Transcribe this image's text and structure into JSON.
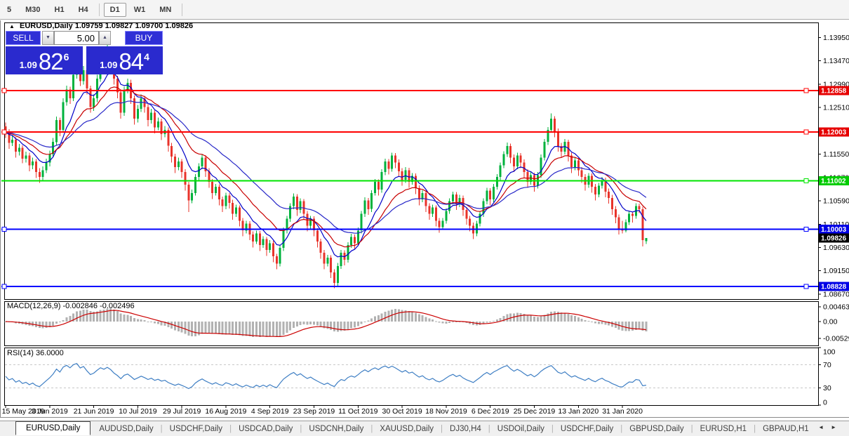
{
  "toolbar": {
    "timeframes": [
      "5",
      "M30",
      "H1",
      "H4",
      "D1",
      "W1",
      "MN"
    ],
    "active": "D1"
  },
  "chart": {
    "header": {
      "collapse_icon": "▲",
      "symbol_label": "EURUSD,Daily",
      "ohlc": "1.09759 1.09827 1.09700 1.09826"
    },
    "trade_panel": {
      "sell_label": "SELL",
      "buy_label": "BUY",
      "volume": "5.00",
      "spin_down_icon": "▼",
      "spin_up_icon": "▲",
      "sell_price": {
        "prefix": "1.09",
        "big": "82",
        "sup": "6"
      },
      "buy_price": {
        "prefix": "1.09",
        "big": "84",
        "sup": "4"
      }
    },
    "macd_label": "MACD(12,26,9) -0.002846 -0.002496",
    "rsi_label": "RSI(14) 36.0000"
  },
  "chart_data": {
    "type": "candlestick",
    "symbol": "EURUSD",
    "timeframe": "Daily",
    "title": "EURUSD,Daily",
    "x_labels": [
      "15 May 2019",
      "3 Jun 2019",
      "21 Jun 2019",
      "10 Jul 2019",
      "29 Jul 2019",
      "16 Aug 2019",
      "4 Sep 2019",
      "23 Sep 2019",
      "11 Oct 2019",
      "30 Oct 2019",
      "18 Nov 2019",
      "6 Dec 2019",
      "25 Dec 2019",
      "13 Jan 2020",
      "31 Jan 2020"
    ],
    "x_label_indices": [
      0,
      13,
      26,
      39,
      52,
      65,
      78,
      91,
      104,
      117,
      130,
      143,
      156,
      169,
      182
    ],
    "price_ticks": [
      "1.13950",
      "1.13470",
      "1.12990",
      "1.12510",
      "1.12030",
      "1.11550",
      "1.11070",
      "1.10590",
      "1.10110",
      "1.09630",
      "1.09150",
      "1.08670"
    ],
    "hlines": [
      {
        "price": 1.12858,
        "label": "1.12858",
        "color": "#FF0000",
        "label_bg": "#E60000",
        "left_square": true
      },
      {
        "price": 1.12003,
        "label": "1.12003",
        "color": "#FF0000",
        "label_bg": "#E60000",
        "left_square": true
      },
      {
        "price": 1.11002,
        "label": "1.11002",
        "color": "#00E400",
        "label_bg": "#00CC00",
        "left_square": false
      },
      {
        "price": 1.10003,
        "label": "1.10003",
        "color": "#0000FF",
        "label_bg": "#0000E6",
        "left_square": true
      },
      {
        "price": 1.08828,
        "label": "1.08828",
        "color": "#0000FF",
        "label_bg": "#0000E6",
        "left_square": true
      }
    ],
    "current_price": {
      "value": 1.09826,
      "label": "1.09826",
      "label_bg": "#000000"
    },
    "moving_averages": [
      {
        "type": "EMA",
        "period": 9,
        "color": "#0000C8"
      },
      {
        "type": "EMA",
        "period": 18,
        "color": "#C80000"
      },
      {
        "type": "EMA",
        "period": 34,
        "color": "#2828C8"
      }
    ],
    "indicators": [
      {
        "name": "MACD",
        "params": "12,26,9",
        "values": [
          "-0.002846",
          "-0.002496"
        ],
        "ticks": [
          {
            "v": 0.00463,
            "label": "0.00463"
          },
          {
            "v": 0,
            "label": "0.00"
          },
          {
            "v": -0.005299,
            "label": "-0.005299"
          }
        ],
        "histogram_color": "#B2B2B2",
        "signal_color": "#CC0000"
      },
      {
        "name": "RSI",
        "params": "14",
        "value": "36.0000",
        "ticks": [
          {
            "v": 100,
            "label": "100"
          },
          {
            "v": 70,
            "label": "70"
          },
          {
            "v": 30,
            "label": "30"
          },
          {
            "v": 0,
            "label": "0"
          }
        ],
        "levels": [
          70,
          30
        ],
        "line_color": "#3F7FC4"
      }
    ],
    "colors": {
      "bull": "#00B23C",
      "bear": "#E8332A"
    },
    "candles": [
      [
        1.1212,
        1.122,
        1.1188,
        1.12
      ],
      [
        1.12,
        1.1206,
        1.1166,
        1.1178
      ],
      [
        1.1178,
        1.1193,
        1.1172,
        1.1185
      ],
      [
        1.1185,
        1.119,
        1.1148,
        1.116
      ],
      [
        1.116,
        1.1176,
        1.1152,
        1.1168
      ],
      [
        1.1168,
        1.1173,
        1.1136,
        1.1146
      ],
      [
        1.1146,
        1.116,
        1.1138,
        1.1152
      ],
      [
        1.1152,
        1.1158,
        1.112,
        1.1132
      ],
      [
        1.1132,
        1.1148,
        1.1124,
        1.114
      ],
      [
        1.114,
        1.1145,
        1.1106,
        1.1118
      ],
      [
        1.1118,
        1.1126,
        1.1096,
        1.1108
      ],
      [
        1.1108,
        1.113,
        1.1102,
        1.1122
      ],
      [
        1.1122,
        1.1146,
        1.1116,
        1.1138
      ],
      [
        1.1138,
        1.1162,
        1.113,
        1.1155
      ],
      [
        1.1155,
        1.1188,
        1.115,
        1.118
      ],
      [
        1.118,
        1.1232,
        1.1174,
        1.1225
      ],
      [
        1.1225,
        1.123,
        1.1192,
        1.1205
      ],
      [
        1.1205,
        1.127,
        1.12,
        1.1262
      ],
      [
        1.1262,
        1.1296,
        1.1255,
        1.1288
      ],
      [
        1.1288,
        1.1294,
        1.1258,
        1.127
      ],
      [
        1.127,
        1.1326,
        1.1264,
        1.1318
      ],
      [
        1.1318,
        1.1348,
        1.131,
        1.134
      ],
      [
        1.134,
        1.1346,
        1.1295,
        1.1305
      ],
      [
        1.1305,
        1.1336,
        1.1298,
        1.1328
      ],
      [
        1.1328,
        1.1333,
        1.1278,
        1.129
      ],
      [
        1.129,
        1.1296,
        1.124,
        1.1252
      ],
      [
        1.1252,
        1.1278,
        1.1244,
        1.127
      ],
      [
        1.127,
        1.1318,
        1.1262,
        1.131
      ],
      [
        1.131,
        1.136,
        1.1304,
        1.1352
      ],
      [
        1.1352,
        1.1358,
        1.1326,
        1.1338
      ],
      [
        1.1338,
        1.139,
        1.1332,
        1.137
      ],
      [
        1.137,
        1.1376,
        1.1336,
        1.1348
      ],
      [
        1.1348,
        1.1354,
        1.1298,
        1.131
      ],
      [
        1.131,
        1.1316,
        1.127,
        1.1282
      ],
      [
        1.1282,
        1.1288,
        1.1228,
        1.124
      ],
      [
        1.124,
        1.1294,
        1.1234,
        1.1286
      ],
      [
        1.1286,
        1.131,
        1.128,
        1.1302
      ],
      [
        1.1302,
        1.1308,
        1.1258,
        1.127
      ],
      [
        1.127,
        1.1276,
        1.1216,
        1.1228
      ],
      [
        1.1228,
        1.1256,
        1.122,
        1.1248
      ],
      [
        1.1248,
        1.1278,
        1.1242,
        1.127
      ],
      [
        1.127,
        1.1275,
        1.124,
        1.1252
      ],
      [
        1.1252,
        1.1258,
        1.1212,
        1.1225
      ],
      [
        1.1225,
        1.1248,
        1.1218,
        1.124
      ],
      [
        1.124,
        1.1245,
        1.1198,
        1.121
      ],
      [
        1.121,
        1.123,
        1.1204,
        1.1222
      ],
      [
        1.1222,
        1.1228,
        1.1184,
        1.1196
      ],
      [
        1.1196,
        1.1213,
        1.119,
        1.1205
      ],
      [
        1.1205,
        1.121,
        1.116,
        1.1172
      ],
      [
        1.1172,
        1.1178,
        1.1138,
        1.115
      ],
      [
        1.115,
        1.1156,
        1.1116,
        1.1128
      ],
      [
        1.1128,
        1.1148,
        1.1122,
        1.114
      ],
      [
        1.114,
        1.1145,
        1.1106,
        1.1118
      ],
      [
        1.1118,
        1.1124,
        1.108,
        1.1092
      ],
      [
        1.1092,
        1.1098,
        1.1036,
        1.106
      ],
      [
        1.106,
        1.1082,
        1.1054,
        1.1075
      ],
      [
        1.1075,
        1.1114,
        1.107,
        1.1108
      ],
      [
        1.1108,
        1.1136,
        1.1102,
        1.113
      ],
      [
        1.113,
        1.1154,
        1.1124,
        1.1148
      ],
      [
        1.1148,
        1.1153,
        1.1108,
        1.112
      ],
      [
        1.112,
        1.1126,
        1.1086,
        1.1098
      ],
      [
        1.1098,
        1.1104,
        1.1063,
        1.1075
      ],
      [
        1.1075,
        1.1094,
        1.107,
        1.1088
      ],
      [
        1.1088,
        1.1093,
        1.105,
        1.1062
      ],
      [
        1.1062,
        1.1068,
        1.1036,
        1.1048
      ],
      [
        1.1048,
        1.1076,
        1.1042,
        1.107
      ],
      [
        1.107,
        1.1075,
        1.1043,
        1.1055
      ],
      [
        1.1055,
        1.1061,
        1.102,
        1.1032
      ],
      [
        1.1032,
        1.1051,
        1.1026,
        1.1045
      ],
      [
        1.1045,
        1.105,
        1.1006,
        1.1018
      ],
      [
        1.1018,
        1.1024,
        1.0986,
        1.0998
      ],
      [
        1.0998,
        1.1018,
        1.0992,
        1.1012
      ],
      [
        1.1012,
        1.1017,
        1.0978,
        1.099
      ],
      [
        1.099,
        1.0996,
        1.0963,
        1.0975
      ],
      [
        1.0975,
        1.0998,
        1.097,
        1.0992
      ],
      [
        1.0992,
        1.0997,
        1.0956,
        1.0968
      ],
      [
        1.0968,
        1.0986,
        1.0962,
        1.098
      ],
      [
        1.098,
        1.0985,
        1.0946,
        1.0958
      ],
      [
        1.0958,
        1.0978,
        1.0952,
        1.0972
      ],
      [
        1.0972,
        1.0977,
        1.0933,
        1.0945
      ],
      [
        1.0945,
        1.095,
        1.0918,
        1.093
      ],
      [
        1.093,
        1.0968,
        1.0924,
        1.0962
      ],
      [
        1.0962,
        1.1004,
        1.0956,
        1.0998
      ],
      [
        1.0998,
        1.1028,
        1.0992,
        1.1022
      ],
      [
        1.1022,
        1.1054,
        1.1016,
        1.1048
      ],
      [
        1.1048,
        1.1074,
        1.1042,
        1.1068
      ],
      [
        1.1068,
        1.1073,
        1.1028,
        1.104
      ],
      [
        1.104,
        1.1064,
        1.1034,
        1.1058
      ],
      [
        1.1058,
        1.1063,
        1.102,
        1.1032
      ],
      [
        1.1032,
        1.1038,
        1.0996,
        1.1008
      ],
      [
        1.1008,
        1.1028,
        1.1002,
        1.1022
      ],
      [
        1.1022,
        1.1027,
        1.0986,
        1.0998
      ],
      [
        1.0998,
        1.1003,
        1.0963,
        1.0975
      ],
      [
        1.0975,
        1.0981,
        1.094,
        1.0952
      ],
      [
        1.0952,
        1.0958,
        1.0918,
        1.093
      ],
      [
        1.093,
        1.0948,
        1.0924,
        1.0942
      ],
      [
        1.0942,
        1.0947,
        1.09,
        1.0912
      ],
      [
        1.0912,
        1.0918,
        1.0879,
        1.089
      ],
      [
        1.089,
        1.0931,
        1.0884,
        1.0925
      ],
      [
        1.0925,
        1.0958,
        1.0919,
        1.0952
      ],
      [
        1.0952,
        1.0957,
        1.0926,
        1.0938
      ],
      [
        1.0938,
        1.0974,
        1.0932,
        1.0968
      ],
      [
        1.0968,
        1.0991,
        1.0962,
        1.0985
      ],
      [
        1.0985,
        1.099,
        1.096,
        1.0972
      ],
      [
        1.0972,
        1.1004,
        1.0966,
        1.0998
      ],
      [
        1.0998,
        1.1038,
        1.0992,
        1.1032
      ],
      [
        1.1032,
        1.1066,
        1.1026,
        1.106
      ],
      [
        1.106,
        1.1065,
        1.103,
        1.1042
      ],
      [
        1.1042,
        1.1081,
        1.1036,
        1.1075
      ],
      [
        1.1075,
        1.1104,
        1.107,
        1.1098
      ],
      [
        1.1098,
        1.1103,
        1.107,
        1.1082
      ],
      [
        1.1082,
        1.1124,
        1.1076,
        1.1118
      ],
      [
        1.1118,
        1.1146,
        1.1112,
        1.114
      ],
      [
        1.114,
        1.1145,
        1.1113,
        1.1125
      ],
      [
        1.1125,
        1.1158,
        1.1119,
        1.1152
      ],
      [
        1.1152,
        1.1157,
        1.1126,
        1.1138
      ],
      [
        1.1138,
        1.1144,
        1.1108,
        1.112
      ],
      [
        1.112,
        1.1126,
        1.109,
        1.1102
      ],
      [
        1.1102,
        1.1128,
        1.1096,
        1.1122
      ],
      [
        1.1122,
        1.1127,
        1.1086,
        1.1098
      ],
      [
        1.1098,
        1.1116,
        1.1092,
        1.111
      ],
      [
        1.111,
        1.1115,
        1.1073,
        1.1085
      ],
      [
        1.1085,
        1.1091,
        1.105,
        1.1062
      ],
      [
        1.1062,
        1.1081,
        1.1056,
        1.1075
      ],
      [
        1.1075,
        1.108,
        1.1036,
        1.1048
      ],
      [
        1.1048,
        1.1054,
        1.102,
        1.1032
      ],
      [
        1.1032,
        1.1051,
        1.1026,
        1.1045
      ],
      [
        1.1045,
        1.105,
        1.1006,
        1.1018
      ],
      [
        1.1018,
        1.1024,
        1.0993,
        1.1005
      ],
      [
        1.1005,
        1.1024,
        1.0999,
        1.1018
      ],
      [
        1.1018,
        1.1044,
        1.1012,
        1.1038
      ],
      [
        1.1038,
        1.1064,
        1.1032,
        1.1058
      ],
      [
        1.1058,
        1.1078,
        1.1052,
        1.1072
      ],
      [
        1.1072,
        1.1077,
        1.104,
        1.1052
      ],
      [
        1.1052,
        1.1071,
        1.1046,
        1.1065
      ],
      [
        1.1065,
        1.107,
        1.1028,
        1.104
      ],
      [
        1.104,
        1.1046,
        1.101,
        1.1022
      ],
      [
        1.1022,
        1.1028,
        1.0996,
        1.1008
      ],
      [
        1.1008,
        1.1014,
        1.098,
        1.0992
      ],
      [
        1.0992,
        1.1018,
        1.0986,
        1.1012
      ],
      [
        1.1012,
        1.1038,
        1.1006,
        1.1032
      ],
      [
        1.1032,
        1.1064,
        1.1026,
        1.1058
      ],
      [
        1.1058,
        1.1086,
        1.1052,
        1.108
      ],
      [
        1.108,
        1.1085,
        1.105,
        1.1062
      ],
      [
        1.1062,
        1.1094,
        1.1056,
        1.1088
      ],
      [
        1.1088,
        1.1114,
        1.1082,
        1.1108
      ],
      [
        1.1108,
        1.1138,
        1.1102,
        1.1132
      ],
      [
        1.1132,
        1.1161,
        1.1126,
        1.1155
      ],
      [
        1.1155,
        1.1179,
        1.1149,
        1.1172
      ],
      [
        1.1172,
        1.1177,
        1.1136,
        1.1148
      ],
      [
        1.1148,
        1.1154,
        1.1118,
        1.113
      ],
      [
        1.113,
        1.1158,
        1.1124,
        1.1152
      ],
      [
        1.1152,
        1.1157,
        1.1126,
        1.1138
      ],
      [
        1.1138,
        1.1144,
        1.1106,
        1.1118
      ],
      [
        1.1118,
        1.1124,
        1.1086,
        1.1098
      ],
      [
        1.1098,
        1.1118,
        1.1092,
        1.1112
      ],
      [
        1.1112,
        1.1117,
        1.1078,
        1.109
      ],
      [
        1.109,
        1.1118,
        1.1084,
        1.1112
      ],
      [
        1.1112,
        1.1154,
        1.1106,
        1.1148
      ],
      [
        1.1148,
        1.1186,
        1.1142,
        1.118
      ],
      [
        1.118,
        1.1211,
        1.1174,
        1.1205
      ],
      [
        1.1205,
        1.1239,
        1.1199,
        1.1228
      ],
      [
        1.1228,
        1.1233,
        1.119,
        1.1202
      ],
      [
        1.1202,
        1.1208,
        1.116,
        1.1172
      ],
      [
        1.1172,
        1.1178,
        1.1148,
        1.116
      ],
      [
        1.116,
        1.1186,
        1.1154,
        1.118
      ],
      [
        1.118,
        1.1185,
        1.114,
        1.1152
      ],
      [
        1.1152,
        1.1158,
        1.1116,
        1.1128
      ],
      [
        1.1128,
        1.1148,
        1.1122,
        1.1142
      ],
      [
        1.1142,
        1.1147,
        1.111,
        1.1122
      ],
      [
        1.1122,
        1.1128,
        1.1096,
        1.1108
      ],
      [
        1.1108,
        1.1114,
        1.108,
        1.1092
      ],
      [
        1.1092,
        1.1116,
        1.1086,
        1.111
      ],
      [
        1.111,
        1.1115,
        1.1076,
        1.1088
      ],
      [
        1.1088,
        1.1094,
        1.106,
        1.1072
      ],
      [
        1.1072,
        1.1096,
        1.1066,
        1.109
      ],
      [
        1.109,
        1.1108,
        1.1084,
        1.1102
      ],
      [
        1.1102,
        1.1107,
        1.1066,
        1.1078
      ],
      [
        1.1078,
        1.1084,
        1.1053,
        1.1065
      ],
      [
        1.1065,
        1.1071,
        1.103,
        1.1042
      ],
      [
        1.1042,
        1.1048,
        1.1013,
        1.1025
      ],
      [
        1.1025,
        1.1031,
        1.099,
        1.1002
      ],
      [
        1.1002,
        1.1018,
        1.0992,
        1.0998
      ],
      [
        1.0998,
        1.1021,
        1.0994,
        1.1015
      ],
      [
        1.1015,
        1.1038,
        1.1009,
        1.1032
      ],
      [
        1.1032,
        1.1037,
        1.1014,
        1.1028
      ],
      [
        1.1028,
        1.1054,
        1.1022,
        1.1048
      ],
      [
        1.1048,
        1.1053,
        1.1034,
        1.1042
      ],
      [
        1.1042,
        1.1047,
        1.0965,
        1.0978
      ],
      [
        1.09759,
        1.09827,
        1.097,
        1.09826
      ]
    ]
  },
  "tabbar": {
    "tabs": [
      "EURUSD,Daily",
      "AUDUSD,Daily",
      "USDCHF,Daily",
      "USDCAD,Daily",
      "USDCNH,Daily",
      "XAUUSD,Daily",
      "DJ30,H4",
      "USDOil,Daily",
      "USDCHF,Daily",
      "GBPUSD,Daily",
      "EURUSD,H1",
      "GBPAUD,H1"
    ],
    "active_index": 0,
    "scroll_left_icon": "◄",
    "scroll_right_icon": "►"
  }
}
